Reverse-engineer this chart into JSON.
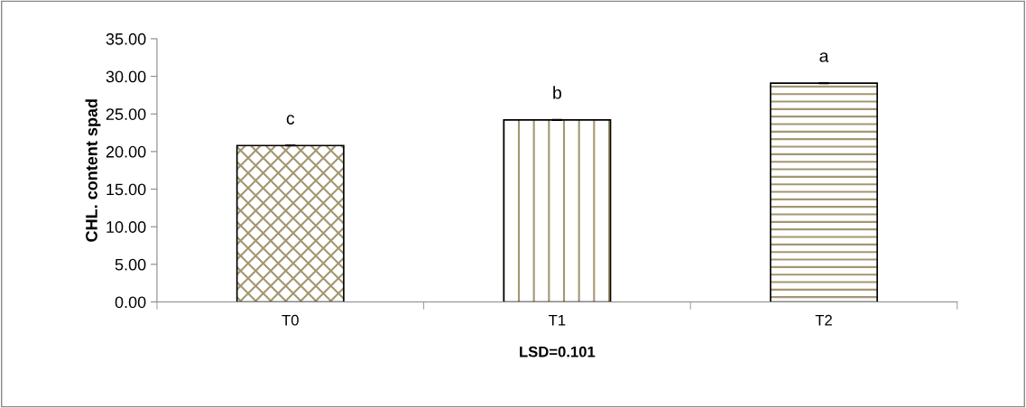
{
  "chart_data": {
    "type": "bar",
    "ylabel": "CHL. content spad",
    "xlabel": "LSD=0.101",
    "categories": [
      "T0",
      "T1",
      "T2"
    ],
    "values": [
      20.8,
      24.2,
      29.1
    ],
    "errors": [
      0.05,
      0.05,
      0.05
    ],
    "color": "#a39770",
    "ylim": [
      0,
      35
    ],
    "yticks": [
      {
        "value": 0,
        "label": "0.00"
      },
      {
        "value": 5,
        "label": "5.00"
      },
      {
        "value": 10,
        "label": "10.00"
      },
      {
        "value": 15,
        "label": "15.00"
      },
      {
        "value": 20,
        "label": "20.00"
      },
      {
        "value": 25,
        "label": "25.00"
      },
      {
        "value": 30,
        "label": "30.00"
      },
      {
        "value": 35,
        "label": "35.00"
      }
    ],
    "annotations": [
      {
        "text": "c",
        "x": "T0",
        "y": 20.8
      },
      {
        "text": "b",
        "x": "T1",
        "y": 24.2
      },
      {
        "text": "a",
        "x": "T2",
        "y": 29.1
      }
    ],
    "grid": false,
    "legend": false
  }
}
